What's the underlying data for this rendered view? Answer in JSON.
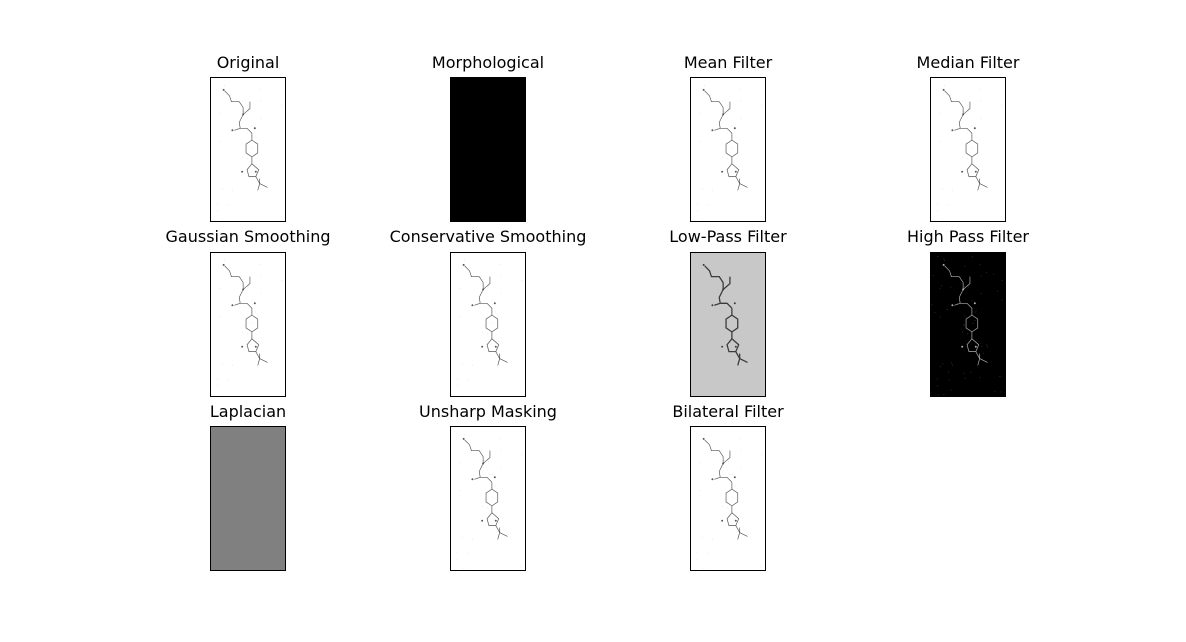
{
  "figure": {
    "panels": [
      {
        "id": "original",
        "title": "Original",
        "style": "normal"
      },
      {
        "id": "morphological",
        "title": "Morphological",
        "style": "black"
      },
      {
        "id": "mean-filter",
        "title": "Mean Filter",
        "style": "normal"
      },
      {
        "id": "median-filter",
        "title": "Median Filter",
        "style": "normal"
      },
      {
        "id": "gaussian-smoothing",
        "title": "Gaussian Smoothing",
        "style": "normal"
      },
      {
        "id": "conservative-smoothing",
        "title": "Conservative Smoothing",
        "style": "normal"
      },
      {
        "id": "low-pass-filter",
        "title": "Low-Pass Filter",
        "style": "lowpass"
      },
      {
        "id": "high-pass-filter",
        "title": "High Pass Filter",
        "style": "highpass"
      },
      {
        "id": "laplacian",
        "title": "Laplacian",
        "style": "gray"
      },
      {
        "id": "unsharp-masking",
        "title": "Unsharp Masking",
        "style": "normal"
      },
      {
        "id": "bilateral-filter",
        "title": "Bilateral Filter",
        "style": "normal"
      }
    ],
    "colors": {
      "normal_bg": "#ffffff",
      "normal_stroke": "#555555",
      "black_bg": "#000000",
      "gray_bg": "#808080",
      "lowpass_bg": "#c8c8c8",
      "lowpass_stroke": "#3a3a3a",
      "highpass_bg": "#000000",
      "highpass_stroke": "#b0b0b0"
    }
  }
}
